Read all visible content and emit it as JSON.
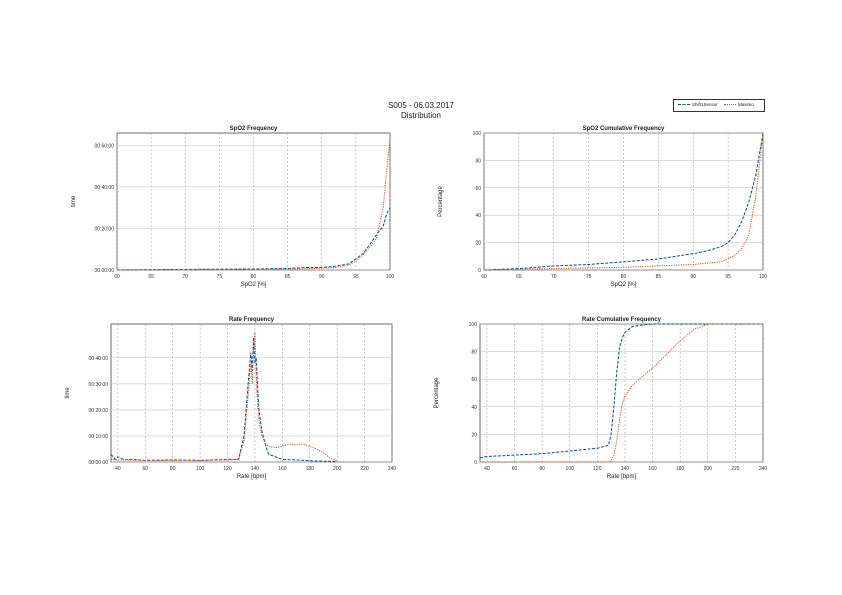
{
  "header": {
    "title": "S005 - 06.03.2017",
    "subtitle": "Distribution"
  },
  "legend": [
    {
      "label": "Shift1Sensor",
      "color": "#0a4f8c"
    },
    {
      "label": "Masimo",
      "color": "#d0552a"
    }
  ],
  "chart_data": [
    {
      "id": "spo2-frequency",
      "type": "line",
      "title": "SpO2 Frequency",
      "xlabel": "SpO2 [%]",
      "ylabel": "time",
      "xlim": [
        60,
        100
      ],
      "ylim": [
        0,
        1.1
      ],
      "xticks": [
        "60",
        "65",
        "70",
        "75",
        "80",
        "85",
        "90",
        "95",
        "100"
      ],
      "yticks": [
        "00:00:00",
        "00:20:00",
        "00:40:00",
        "00:60:00"
      ],
      "ytick_values": [
        0,
        0.333,
        0.667,
        1.0
      ],
      "grid": true,
      "series": [
        {
          "name": "Shift1Sensor",
          "x": [
            60,
            70,
            80,
            85,
            88,
            90,
            92,
            94,
            95,
            96,
            97,
            98,
            99,
            99.5,
            100
          ],
          "y": [
            0,
            0.005,
            0.008,
            0.012,
            0.02,
            0.02,
            0.03,
            0.05,
            0.09,
            0.13,
            0.2,
            0.28,
            0.35,
            0.45,
            0.5
          ]
        },
        {
          "name": "Masimo",
          "x": [
            60,
            70,
            80,
            85,
            88,
            90,
            92,
            94,
            95,
            96,
            97,
            98,
            99,
            99.5,
            100
          ],
          "y": [
            0,
            0.004,
            0.006,
            0.008,
            0.01,
            0.015,
            0.02,
            0.04,
            0.07,
            0.12,
            0.18,
            0.25,
            0.5,
            0.8,
            1.05
          ]
        }
      ]
    },
    {
      "id": "spo2-cumulative",
      "type": "line",
      "title": "SpO2 Cumulative Frequency",
      "xlabel": "SpO2 [%]",
      "ylabel": "Percentage",
      "xlim": [
        60,
        100
      ],
      "ylim": [
        0,
        100
      ],
      "xticks": [
        "60",
        "65",
        "70",
        "75",
        "80",
        "85",
        "90",
        "95",
        "100"
      ],
      "yticks": [
        "0",
        "20",
        "40",
        "60",
        "80",
        "100"
      ],
      "ytick_values": [
        0,
        20,
        40,
        60,
        80,
        100
      ],
      "grid": true,
      "series": [
        {
          "name": "Shift1Sensor",
          "x": [
            60,
            65,
            70,
            75,
            80,
            85,
            90,
            92,
            94,
            95,
            96,
            97,
            98,
            99,
            100
          ],
          "y": [
            0,
            1,
            3,
            4,
            6,
            8,
            12,
            14,
            17,
            20,
            26,
            36,
            50,
            70,
            100
          ]
        },
        {
          "name": "Masimo",
          "x": [
            60,
            65,
            70,
            75,
            80,
            85,
            90,
            92,
            94,
            95,
            96,
            97,
            98,
            99,
            100
          ],
          "y": [
            0,
            0.5,
            1,
            1.5,
            2,
            3,
            4,
            5,
            6,
            8,
            11,
            16,
            26,
            55,
            100
          ]
        }
      ]
    },
    {
      "id": "rate-frequency",
      "type": "line",
      "title": "Rate Frequency",
      "xlabel": "Rate [bpm]",
      "ylabel": "time",
      "xlim": [
        35,
        240
      ],
      "ylim": [
        0,
        0.53
      ],
      "xticks": [
        "40",
        "60",
        "80",
        "100",
        "120",
        "140",
        "160",
        "180",
        "200",
        "220",
        "240"
      ],
      "yticks": [
        "00:00:00",
        "00:10:00",
        "00:20:00",
        "00:30:00",
        "00:40:00"
      ],
      "ytick_values": [
        0,
        0.1,
        0.2,
        0.3,
        0.4
      ],
      "grid": true,
      "series": [
        {
          "name": "Shift1Sensor",
          "x": [
            35,
            38,
            40,
            45,
            50,
            60,
            80,
            100,
            120,
            128,
            132,
            135,
            137,
            138,
            139,
            140,
            141,
            142,
            143,
            145,
            148,
            150,
            155,
            160,
            170,
            180,
            190,
            200
          ],
          "y": [
            0.03,
            0.01,
            0.02,
            0.008,
            0.01,
            0.006,
            0.008,
            0.006,
            0.01,
            0.01,
            0.1,
            0.3,
            0.42,
            0.35,
            0.48,
            0.38,
            0.4,
            0.28,
            0.2,
            0.12,
            0.06,
            0.03,
            0.02,
            0.01,
            0.008,
            0.005,
            0.003,
            0.002
          ]
        },
        {
          "name": "Masimo",
          "x": [
            35,
            40,
            60,
            80,
            100,
            120,
            128,
            132,
            135,
            137,
            138,
            139,
            140,
            141,
            142,
            143,
            145,
            148,
            150,
            155,
            160,
            165,
            170,
            175,
            180,
            185,
            190,
            195,
            200
          ],
          "y": [
            0.01,
            0.008,
            0.006,
            0.006,
            0.006,
            0.008,
            0.01,
            0.08,
            0.25,
            0.38,
            0.3,
            0.43,
            0.5,
            0.32,
            0.22,
            0.16,
            0.1,
            0.07,
            0.06,
            0.055,
            0.06,
            0.07,
            0.065,
            0.07,
            0.06,
            0.05,
            0.035,
            0.015,
            0.004
          ]
        }
      ]
    },
    {
      "id": "rate-cumulative",
      "type": "line",
      "title": "Rate Cumulative Frequency",
      "xlabel": "Rate [bpm]",
      "ylabel": "Percentage",
      "xlim": [
        35,
        240
      ],
      "ylim": [
        0,
        100
      ],
      "xticks": [
        "40",
        "60",
        "80",
        "100",
        "120",
        "140",
        "160",
        "180",
        "200",
        "220",
        "240"
      ],
      "yticks": [
        "0",
        "20",
        "40",
        "60",
        "80",
        "100"
      ],
      "ytick_values": [
        0,
        20,
        40,
        60,
        80,
        100
      ],
      "grid": true,
      "series": [
        {
          "name": "Shift1Sensor",
          "x": [
            35,
            40,
            60,
            80,
            100,
            120,
            128,
            130,
            132,
            134,
            136,
            138,
            140,
            145,
            150,
            160,
            170,
            180,
            240
          ],
          "y": [
            3,
            4,
            5,
            6,
            8,
            10,
            12,
            20,
            40,
            65,
            82,
            90,
            94,
            98,
            99,
            100,
            100,
            100,
            100
          ]
        },
        {
          "name": "Masimo",
          "x": [
            35,
            40,
            60,
            80,
            100,
            120,
            128,
            130,
            132,
            134,
            136,
            138,
            140,
            145,
            150,
            160,
            170,
            180,
            190,
            200,
            240
          ],
          "y": [
            0,
            0,
            0,
            0,
            0,
            0,
            0,
            1,
            5,
            15,
            30,
            42,
            48,
            55,
            60,
            68,
            78,
            88,
            96,
            100,
            100
          ]
        }
      ]
    }
  ]
}
